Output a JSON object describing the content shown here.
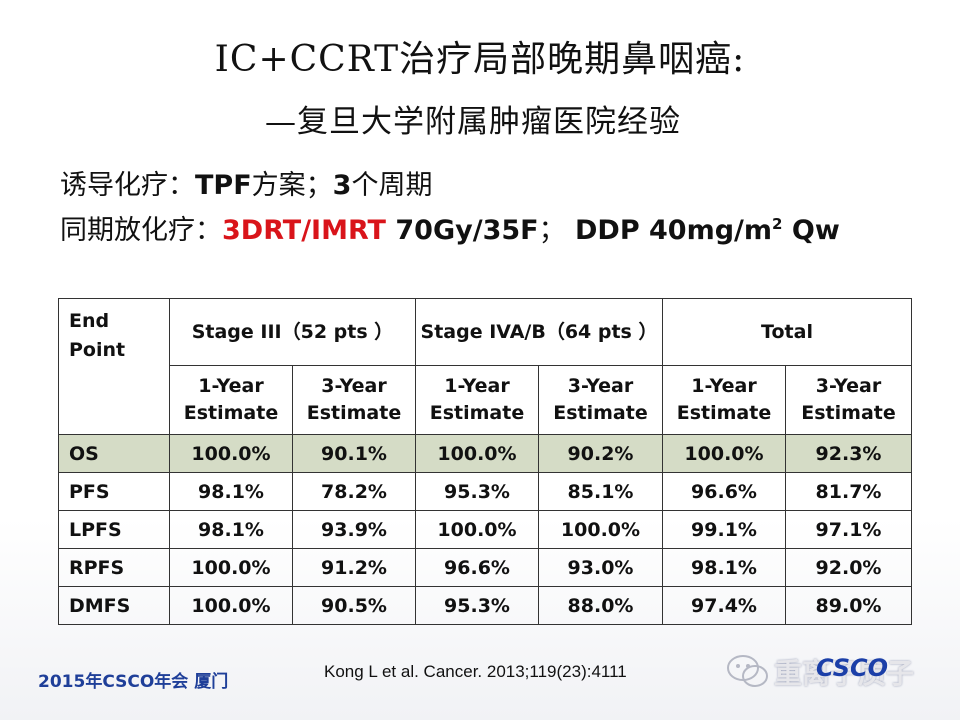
{
  "slide": {
    "title": "IC+CCRT治疗局部晚期鼻咽癌:",
    "subtitle": "—复旦大学附属肿瘤医院经验",
    "line1": {
      "prefix": "诱导化疗：",
      "tpf": "TPF",
      "mid": "方案；",
      "num": "3",
      "suffix": "个周期"
    },
    "line2": {
      "prefix": "同期放化疗：",
      "red": "3DRT/IMRT",
      "dose": " 70Gy/35F",
      "sep": "；",
      "ddp": " DDP 40mg/m",
      "sup": "2",
      "qw": " Qw"
    }
  },
  "table": {
    "endpoint_header": "End Point",
    "groups": [
      "Stage III（52 pts ）",
      "Stage IVA/B（64 pts ）",
      "Total"
    ],
    "year1": "1-Year Estimate",
    "year3": "3-Year Estimate",
    "rows": [
      {
        "name": "OS",
        "v": [
          "100.0%",
          "90.1%",
          "100.0%",
          "90.2%",
          "100.0%",
          "92.3%"
        ]
      },
      {
        "name": "PFS",
        "v": [
          "98.1%",
          "78.2%",
          "95.3%",
          "85.1%",
          "96.6%",
          "81.7%"
        ]
      },
      {
        "name": "LPFS",
        "v": [
          "98.1%",
          "93.9%",
          "100.0%",
          "100.0%",
          "99.1%",
          "97.1%"
        ]
      },
      {
        "name": "RPFS",
        "v": [
          "100.0%",
          "91.2%",
          "96.6%",
          "93.0%",
          "98.1%",
          "92.0%"
        ]
      },
      {
        "name": "DMFS",
        "v": [
          "100.0%",
          "90.5%",
          "95.3%",
          "88.0%",
          "97.4%",
          "89.0%"
        ]
      }
    ]
  },
  "footer": {
    "left": "2015年CSCO年会   厦门",
    "citation": "Kong L et al. Cancer. 2013;119(23):4111",
    "watermark": "重离子质子",
    "watermark_logo": "CSCO"
  }
}
